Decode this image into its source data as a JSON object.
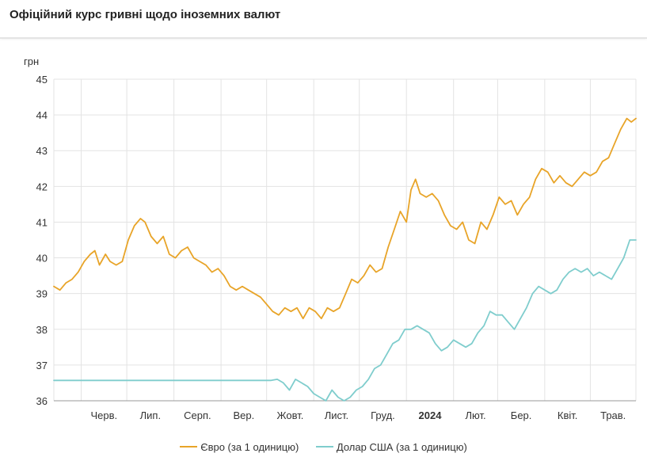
{
  "title": "Офіційний курс гривні щодо іноземних валют",
  "colors": {
    "eur": "#e8a428",
    "usd": "#7fcdcd",
    "grid": "#e3e3e3",
    "axis": "#999999"
  },
  "chart_data": {
    "type": "line",
    "ylabel": "грн",
    "ylim": [
      36,
      45
    ],
    "y_ticks": [
      45,
      44,
      43,
      42,
      41,
      40,
      39,
      38,
      37,
      36
    ],
    "x_ticks": [
      {
        "label": "Черв.",
        "bold": false
      },
      {
        "label": "Лип.",
        "bold": false
      },
      {
        "label": "Серп.",
        "bold": false
      },
      {
        "label": "Вер.",
        "bold": false
      },
      {
        "label": "Жовт.",
        "bold": false
      },
      {
        "label": "Лист.",
        "bold": false
      },
      {
        "label": "Груд.",
        "bold": false
      },
      {
        "label": "2024",
        "bold": true
      },
      {
        "label": "Лют.",
        "bold": false
      },
      {
        "label": "Бер.",
        "bold": false
      },
      {
        "label": "Квіт.",
        "bold": false
      },
      {
        "label": "Трав.",
        "bold": false
      }
    ],
    "x_start": "2023-05-14",
    "x_end": "2024-05-31",
    "grid": true,
    "legend_position": "bottom",
    "series": [
      {
        "name": "Євро (за 1 одиницю)",
        "color": "#e8a428",
        "points": [
          [
            "2023-05-14",
            39.2
          ],
          [
            "2023-05-18",
            39.1
          ],
          [
            "2023-05-22",
            39.3
          ],
          [
            "2023-05-26",
            39.4
          ],
          [
            "2023-05-30",
            39.6
          ],
          [
            "2023-06-03",
            39.9
          ],
          [
            "2023-06-07",
            40.1
          ],
          [
            "2023-06-10",
            40.2
          ],
          [
            "2023-06-13",
            39.8
          ],
          [
            "2023-06-17",
            40.1
          ],
          [
            "2023-06-20",
            39.9
          ],
          [
            "2023-06-24",
            39.8
          ],
          [
            "2023-06-28",
            39.9
          ],
          [
            "2023-07-02",
            40.5
          ],
          [
            "2023-07-06",
            40.9
          ],
          [
            "2023-07-10",
            41.1
          ],
          [
            "2023-07-13",
            41.0
          ],
          [
            "2023-07-17",
            40.6
          ],
          [
            "2023-07-21",
            40.4
          ],
          [
            "2023-07-25",
            40.6
          ],
          [
            "2023-07-29",
            40.1
          ],
          [
            "2023-08-02",
            40.0
          ],
          [
            "2023-08-06",
            40.2
          ],
          [
            "2023-08-10",
            40.3
          ],
          [
            "2023-08-14",
            40.0
          ],
          [
            "2023-08-18",
            39.9
          ],
          [
            "2023-08-22",
            39.8
          ],
          [
            "2023-08-26",
            39.6
          ],
          [
            "2023-08-30",
            39.7
          ],
          [
            "2023-09-03",
            39.5
          ],
          [
            "2023-09-07",
            39.2
          ],
          [
            "2023-09-11",
            39.1
          ],
          [
            "2023-09-15",
            39.2
          ],
          [
            "2023-09-19",
            39.1
          ],
          [
            "2023-09-23",
            39.0
          ],
          [
            "2023-09-27",
            38.9
          ],
          [
            "2023-10-01",
            38.7
          ],
          [
            "2023-10-05",
            38.5
          ],
          [
            "2023-10-09",
            38.4
          ],
          [
            "2023-10-13",
            38.6
          ],
          [
            "2023-10-17",
            38.5
          ],
          [
            "2023-10-21",
            38.6
          ],
          [
            "2023-10-25",
            38.3
          ],
          [
            "2023-10-29",
            38.6
          ],
          [
            "2023-11-02",
            38.5
          ],
          [
            "2023-11-06",
            38.3
          ],
          [
            "2023-11-10",
            38.6
          ],
          [
            "2023-11-14",
            38.5
          ],
          [
            "2023-11-18",
            38.6
          ],
          [
            "2023-11-22",
            39.0
          ],
          [
            "2023-11-26",
            39.4
          ],
          [
            "2023-11-30",
            39.3
          ],
          [
            "2023-12-04",
            39.5
          ],
          [
            "2023-12-08",
            39.8
          ],
          [
            "2023-12-12",
            39.6
          ],
          [
            "2023-12-16",
            39.7
          ],
          [
            "2023-12-20",
            40.3
          ],
          [
            "2023-12-24",
            40.8
          ],
          [
            "2023-12-28",
            41.3
          ],
          [
            "2024-01-01",
            41.0
          ],
          [
            "2024-01-04",
            41.9
          ],
          [
            "2024-01-07",
            42.2
          ],
          [
            "2024-01-10",
            41.8
          ],
          [
            "2024-01-14",
            41.7
          ],
          [
            "2024-01-18",
            41.8
          ],
          [
            "2024-01-22",
            41.6
          ],
          [
            "2024-01-26",
            41.2
          ],
          [
            "2024-01-30",
            40.9
          ],
          [
            "2024-02-03",
            40.8
          ],
          [
            "2024-02-07",
            41.0
          ],
          [
            "2024-02-11",
            40.5
          ],
          [
            "2024-02-15",
            40.4
          ],
          [
            "2024-02-19",
            41.0
          ],
          [
            "2024-02-23",
            40.8
          ],
          [
            "2024-02-27",
            41.2
          ],
          [
            "2024-03-02",
            41.7
          ],
          [
            "2024-03-06",
            41.5
          ],
          [
            "2024-03-10",
            41.6
          ],
          [
            "2024-03-14",
            41.2
          ],
          [
            "2024-03-18",
            41.5
          ],
          [
            "2024-03-22",
            41.7
          ],
          [
            "2024-03-26",
            42.2
          ],
          [
            "2024-03-30",
            42.5
          ],
          [
            "2024-04-03",
            42.4
          ],
          [
            "2024-04-07",
            42.1
          ],
          [
            "2024-04-11",
            42.3
          ],
          [
            "2024-04-15",
            42.1
          ],
          [
            "2024-04-19",
            42.0
          ],
          [
            "2024-04-23",
            42.2
          ],
          [
            "2024-04-27",
            42.4
          ],
          [
            "2024-05-01",
            42.3
          ],
          [
            "2024-05-05",
            42.4
          ],
          [
            "2024-05-09",
            42.7
          ],
          [
            "2024-05-13",
            42.8
          ],
          [
            "2024-05-17",
            43.2
          ],
          [
            "2024-05-21",
            43.6
          ],
          [
            "2024-05-25",
            43.9
          ],
          [
            "2024-05-28",
            43.8
          ],
          [
            "2024-05-31",
            43.9
          ]
        ]
      },
      {
        "name": "Долар США (за 1 одиницю)",
        "color": "#7fcdcd",
        "points": [
          [
            "2023-05-14",
            36.57
          ],
          [
            "2023-06-15",
            36.57
          ],
          [
            "2023-07-15",
            36.57
          ],
          [
            "2023-08-15",
            36.57
          ],
          [
            "2023-09-15",
            36.57
          ],
          [
            "2023-10-04",
            36.57
          ],
          [
            "2023-10-08",
            36.6
          ],
          [
            "2023-10-12",
            36.5
          ],
          [
            "2023-10-16",
            36.3
          ],
          [
            "2023-10-20",
            36.6
          ],
          [
            "2023-10-24",
            36.5
          ],
          [
            "2023-10-28",
            36.4
          ],
          [
            "2023-11-01",
            36.2
          ],
          [
            "2023-11-05",
            36.1
          ],
          [
            "2023-11-09",
            36.0
          ],
          [
            "2023-11-13",
            36.3
          ],
          [
            "2023-11-17",
            36.1
          ],
          [
            "2023-11-21",
            36.0
          ],
          [
            "2023-11-25",
            36.1
          ],
          [
            "2023-11-29",
            36.3
          ],
          [
            "2023-12-03",
            36.4
          ],
          [
            "2023-12-07",
            36.6
          ],
          [
            "2023-12-11",
            36.9
          ],
          [
            "2023-12-15",
            37.0
          ],
          [
            "2023-12-19",
            37.3
          ],
          [
            "2023-12-23",
            37.6
          ],
          [
            "2023-12-27",
            37.7
          ],
          [
            "2023-12-31",
            38.0
          ],
          [
            "2024-01-04",
            38.0
          ],
          [
            "2024-01-08",
            38.1
          ],
          [
            "2024-01-12",
            38.0
          ],
          [
            "2024-01-16",
            37.9
          ],
          [
            "2024-01-20",
            37.6
          ],
          [
            "2024-01-24",
            37.4
          ],
          [
            "2024-01-28",
            37.5
          ],
          [
            "2024-02-01",
            37.7
          ],
          [
            "2024-02-05",
            37.6
          ],
          [
            "2024-02-09",
            37.5
          ],
          [
            "2024-02-13",
            37.6
          ],
          [
            "2024-02-17",
            37.9
          ],
          [
            "2024-02-21",
            38.1
          ],
          [
            "2024-02-25",
            38.5
          ],
          [
            "2024-02-29",
            38.4
          ],
          [
            "2024-03-04",
            38.4
          ],
          [
            "2024-03-08",
            38.2
          ],
          [
            "2024-03-12",
            38.0
          ],
          [
            "2024-03-16",
            38.3
          ],
          [
            "2024-03-20",
            38.6
          ],
          [
            "2024-03-24",
            39.0
          ],
          [
            "2024-03-28",
            39.2
          ],
          [
            "2024-04-01",
            39.1
          ],
          [
            "2024-04-05",
            39.0
          ],
          [
            "2024-04-09",
            39.1
          ],
          [
            "2024-04-13",
            39.4
          ],
          [
            "2024-04-17",
            39.6
          ],
          [
            "2024-04-21",
            39.7
          ],
          [
            "2024-04-25",
            39.6
          ],
          [
            "2024-04-29",
            39.7
          ],
          [
            "2024-05-03",
            39.5
          ],
          [
            "2024-05-07",
            39.6
          ],
          [
            "2024-05-11",
            39.5
          ],
          [
            "2024-05-15",
            39.4
          ],
          [
            "2024-05-19",
            39.7
          ],
          [
            "2024-05-23",
            40.0
          ],
          [
            "2024-05-27",
            40.5
          ],
          [
            "2024-05-31",
            40.5
          ]
        ]
      }
    ]
  }
}
